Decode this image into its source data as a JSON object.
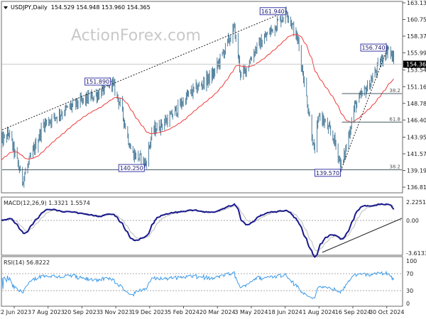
{
  "header": {
    "symbol": "USDJPY,Daily",
    "ohlc": "154.529 154.948 153.960 154.365"
  },
  "watermark": "ActionForex.com",
  "colors": {
    "bars": "#4f7f9c",
    "ma": "#ef3b3b",
    "macd": "#1a1a8c",
    "signal": "#bdbdbd",
    "rsi": "#3d9be9",
    "label_border": "#3a3aa8",
    "current_price_bg": "#000000"
  },
  "chart_data": [
    {
      "type": "ohlc",
      "title": "USDJPY,Daily",
      "ylim": [
        136.81,
        163.13
      ],
      "y_ticks": [
        "163.130",
        "160.750",
        "158.370",
        "155.990",
        "153.540",
        "151.160",
        "148.780",
        "146.400",
        "143.950",
        "141.570",
        "139.190",
        "136.810"
      ],
      "x_ticks": [
        "22 Jun 2023",
        "7 Aug 2023",
        "20 Sep 2023",
        "3 Nov 2023",
        "19 Dec 2023",
        "5 Feb 2024",
        "20 Mar 2024",
        "3 May 2024",
        "18 Jun 2024",
        "1 Aug 2024",
        "16 Sep 2024",
        "30 Oct 2024"
      ],
      "current_price": "154.365",
      "price_path": [
        {
          "date": "2023-06-05",
          "price": 143.3
        },
        {
          "date": "2023-06-15",
          "price": 144.5
        },
        {
          "date": "2023-07-03",
          "price": 137.8
        },
        {
          "date": "2023-07-31",
          "price": 145.8
        },
        {
          "date": "2023-09-05",
          "price": 148.3
        },
        {
          "date": "2023-10-13",
          "price": 150.2
        },
        {
          "date": "2023-10-30",
          "price": 151.89
        },
        {
          "date": "2023-11-11",
          "price": 148.3
        },
        {
          "date": "2023-11-25",
          "price": 141.8
        },
        {
          "date": "2023-12-14",
          "price": 140.25
        },
        {
          "date": "2023-12-23",
          "price": 144.8
        },
        {
          "date": "2024-01-16",
          "price": 146.8
        },
        {
          "date": "2024-02-08",
          "price": 149.9
        },
        {
          "date": "2024-03-13",
          "price": 152.9
        },
        {
          "date": "2024-04-10",
          "price": 159.5
        },
        {
          "date": "2024-04-19",
          "price": 152.4
        },
        {
          "date": "2024-05-08",
          "price": 156.5
        },
        {
          "date": "2024-06-19",
          "price": 161.94
        },
        {
          "date": "2024-07-04",
          "price": 157.5
        },
        {
          "date": "2024-07-21",
          "price": 145.3
        },
        {
          "date": "2024-07-25",
          "price": 141.8
        },
        {
          "date": "2024-08-01",
          "price": 147.3
        },
        {
          "date": "2024-08-20",
          "price": 143.8
        },
        {
          "date": "2024-08-31",
          "price": 139.57
        },
        {
          "date": "2024-09-17",
          "price": 148.4
        },
        {
          "date": "2024-10-06",
          "price": 151.4
        },
        {
          "date": "2024-10-31",
          "price": 156.74
        },
        {
          "date": "2024-11-10",
          "price": 154.365
        }
      ],
      "swing_labels": [
        {
          "text": "161.940",
          "date": "2024-06-19",
          "price": 161.94
        },
        {
          "text": "151.890",
          "date": "2023-10-30",
          "price": 151.89
        },
        {
          "text": "140.250",
          "date": "2023-12-14",
          "price": 140.25
        },
        {
          "text": "139.570",
          "date": "2024-08-31",
          "price": 139.57
        },
        {
          "text": "156.740",
          "date": "2024-10-31",
          "price": 156.74
        }
      ],
      "fib_levels": [
        {
          "label": "38.2",
          "price": 150.18
        },
        {
          "label": "61.8",
          "price": 146.1
        },
        {
          "label": "38.2",
          "price": 139.3
        }
      ],
      "moving_average": "red line"
    },
    {
      "type": "line",
      "title": "MACD(12,26,9) 1.3321 1.5574",
      "y_ticks": [
        "2.2251",
        "0.00",
        "-3.6133"
      ],
      "ylim": [
        -3.6133,
        2.2251
      ]
    },
    {
      "type": "line",
      "title": "RSI(14) 56.8222",
      "y_ticks": [
        "100",
        "70",
        "30",
        "0"
      ],
      "ylim": [
        0,
        100
      ],
      "levels": [
        70,
        30
      ]
    }
  ]
}
